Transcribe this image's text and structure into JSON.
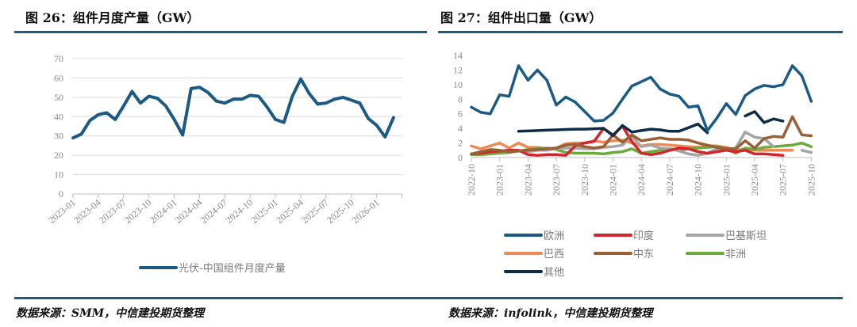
{
  "left_panel": {
    "title": "图 26：组件月度产量（GW）",
    "source": "数据来源：SMM，中信建投期货整理"
  },
  "right_panel": {
    "title": "图 27：组件出口量（GW）",
    "source": "数据来源：infolink，中信建投期货整理"
  },
  "colors": {
    "rule": "#1f5a82",
    "grid": "#d9d9d9",
    "europe": "#1b5a85",
    "india": "#d0262c",
    "pakistan": "#a5a5a5",
    "brazil": "#f08a55",
    "middle_east": "#9a5f35",
    "africa": "#6aab3c",
    "other": "#0f2d47"
  },
  "chart_data": [
    {
      "type": "line",
      "title": "图 26：组件月度产量（GW）",
      "xlabel": "",
      "ylabel": "",
      "ylim": [
        0,
        70
      ],
      "yticks": [
        "0",
        "10",
        "20",
        "30",
        "40",
        "50",
        "60",
        "70"
      ],
      "grid": true,
      "legend_position": "bottom",
      "xtick_labels": [
        "2023-01",
        "2023-04",
        "2023-07",
        "2023-10",
        "2024-01",
        "2024-04",
        "2024-07",
        "2024-10",
        "2025-01",
        "2025-04",
        "2025-07",
        "2025-10",
        "2026-01"
      ],
      "x": [
        "2023-01",
        "2023-02",
        "2023-03",
        "2023-04",
        "2023-05",
        "2023-06",
        "2023-07",
        "2023-08",
        "2023-09",
        "2023-10",
        "2023-11",
        "2023-12",
        "2024-01",
        "2024-02",
        "2024-03",
        "2024-04",
        "2024-05",
        "2024-06",
        "2024-07",
        "2024-08",
        "2024-09",
        "2024-10",
        "2024-11",
        "2024-12",
        "2025-01",
        "2025-02",
        "2025-03",
        "2025-04",
        "2025-05",
        "2025-06",
        "2025-07",
        "2025-08",
        "2025-09",
        "2025-10",
        "2025-11",
        "2025-12",
        "2026-01",
        "2026-02",
        "2026-03"
      ],
      "series": [
        {
          "name": "光伏-中国组件月度产量",
          "color": "#1b5a85",
          "values": [
            29,
            31,
            38,
            41,
            42,
            38.5,
            45.5,
            53,
            47,
            50.5,
            49.5,
            45.5,
            38.5,
            30.5,
            54.5,
            55.2,
            52.5,
            48,
            47,
            49,
            49,
            51,
            50.5,
            45,
            38.5,
            37,
            50.5,
            59.5,
            52,
            46.5,
            47,
            49,
            50,
            48.5,
            47,
            39,
            35.5,
            29.5,
            39.5
          ]
        }
      ]
    },
    {
      "type": "line",
      "title": "图 27：组件出口量（GW）",
      "xlabel": "",
      "ylabel": "",
      "ylim": [
        0,
        14
      ],
      "yticks": [
        "0",
        "2",
        "4",
        "6",
        "8",
        "10",
        "12",
        "14"
      ],
      "grid": false,
      "legend_position": "bottom",
      "xtick_labels": [
        "2022-10",
        "2023-01",
        "2023-04",
        "2023-07",
        "2023-10",
        "2024-01",
        "2024-04",
        "2024-07",
        "2024-10",
        "2025-01",
        "2025-04",
        "2025-07",
        "2025-10"
      ],
      "x": [
        "2022-10",
        "2022-11",
        "2022-12",
        "2023-01",
        "2023-02",
        "2023-03",
        "2023-04",
        "2023-05",
        "2023-06",
        "2023-07",
        "2023-08",
        "2023-09",
        "2023-10",
        "2023-11",
        "2023-12",
        "2024-01",
        "2024-02",
        "2024-03",
        "2024-04",
        "2024-05",
        "2024-06",
        "2024-07",
        "2024-08",
        "2024-09",
        "2024-10",
        "2024-11",
        "2024-12",
        "2025-01",
        "2025-02",
        "2025-03",
        "2025-04",
        "2025-05",
        "2025-06",
        "2025-07",
        "2025-08",
        "2025-09",
        "2025-10"
      ],
      "series": [
        {
          "name": "欧洲",
          "color": "#1b5a85",
          "values": [
            6.9,
            6.2,
            6.0,
            8.6,
            8.4,
            12.6,
            10.6,
            12.0,
            10.6,
            7.2,
            8.3,
            7.6,
            6.3,
            5.0,
            5.1,
            6.1,
            8.0,
            9.8,
            10.4,
            11.0,
            9.4,
            8.7,
            8.4,
            6.9,
            7.1,
            3.7,
            5.4,
            7.4,
            5.9,
            8.5,
            9.4,
            9.9,
            9.7,
            10.0,
            12.6,
            11.2,
            7.7
          ]
        },
        {
          "name": "印度",
          "color": "#d0262c",
          "values": [
            0.5,
            0.6,
            0.8,
            0.9,
            1.0,
            1.0,
            0.4,
            0.3,
            0.4,
            0.4,
            0.3,
            1.6,
            2.0,
            2.2,
            4.0,
            3.1,
            4.3,
            2.2,
            0.6,
            0.4,
            0.6,
            1.0,
            1.3,
            1.2,
            0.8,
            0.6,
            0.8,
            1.0,
            0.8,
            1.0,
            0.5,
            0.5,
            0.4,
            0.3,
            null,
            null,
            null
          ]
        },
        {
          "name": "巴基斯坦",
          "color": "#a5a5a5",
          "values": [
            0.5,
            0.6,
            0.9,
            0.9,
            1.0,
            0.9,
            0.8,
            1.0,
            1.0,
            1.2,
            1.3,
            1.3,
            1.2,
            1.2,
            1.4,
            1.5,
            1.7,
            2.9,
            1.5,
            1.7,
            1.3,
            1.2,
            0.9,
            0.5,
            0.3,
            0.6,
            1.2,
            1.1,
            1.3,
            3.5,
            2.8,
            2.6,
            1.5,
            null,
            null,
            1.0,
            0.7
          ]
        },
        {
          "name": "巴西",
          "color": "#f08a55",
          "values": [
            1.6,
            1.2,
            1.6,
            2.0,
            1.3,
            2.0,
            1.4,
            1.4,
            1.2,
            1.3,
            1.9,
            2.0,
            2.0,
            2.3,
            2.1,
            2.3,
            2.4,
            2.0,
            1.6,
            1.8,
            1.8,
            1.7,
            1.6,
            1.5,
            1.4,
            1.6,
            1.6,
            1.4,
            1.0,
            1.2,
            1.0,
            1.0,
            1.0,
            1.0,
            1.0,
            null,
            null
          ]
        },
        {
          "name": "中东",
          "color": "#9a5f35",
          "values": [
            0.5,
            0.8,
            1.1,
            1.0,
            0.8,
            0.9,
            1.0,
            1.1,
            1.2,
            1.3,
            1.7,
            1.8,
            1.5,
            1.3,
            1.5,
            3.1,
            2.1,
            3.1,
            2.3,
            2.5,
            2.7,
            2.5,
            2.5,
            2.4,
            2.0,
            1.7,
            1.4,
            1.2,
            1.2,
            2.3,
            1.3,
            2.6,
            2.9,
            2.8,
            5.6,
            3.1,
            3.0
          ]
        },
        {
          "name": "非洲",
          "color": "#6aab3c",
          "values": [
            0.4,
            0.4,
            0.5,
            0.6,
            0.7,
            0.9,
            1.1,
            1.2,
            1.3,
            1.1,
            0.7,
            0.6,
            0.6,
            0.6,
            0.5,
            0.7,
            0.8,
            1.2,
            0.6,
            0.8,
            1.0,
            1.2,
            1.0,
            1.2,
            1.3,
            1.4,
            1.5,
            1.2,
            0.6,
            1.3,
            1.1,
            1.4,
            1.5,
            1.6,
            1.7,
            2.0,
            1.5
          ]
        },
        {
          "name": "其他",
          "color": "#0f2d47",
          "values": [
            null,
            null,
            null,
            null,
            null,
            3.6,
            3.65,
            3.7,
            3.75,
            3.8,
            3.85,
            3.9,
            3.9,
            3.95,
            4.0,
            3.0,
            4.4,
            3.5,
            3.7,
            3.9,
            3.8,
            3.6,
            3.6,
            4.1,
            4.6,
            3.4,
            null,
            null,
            null,
            5.7,
            6.3,
            4.8,
            5.3,
            5.0,
            null,
            null,
            null
          ]
        }
      ]
    }
  ]
}
